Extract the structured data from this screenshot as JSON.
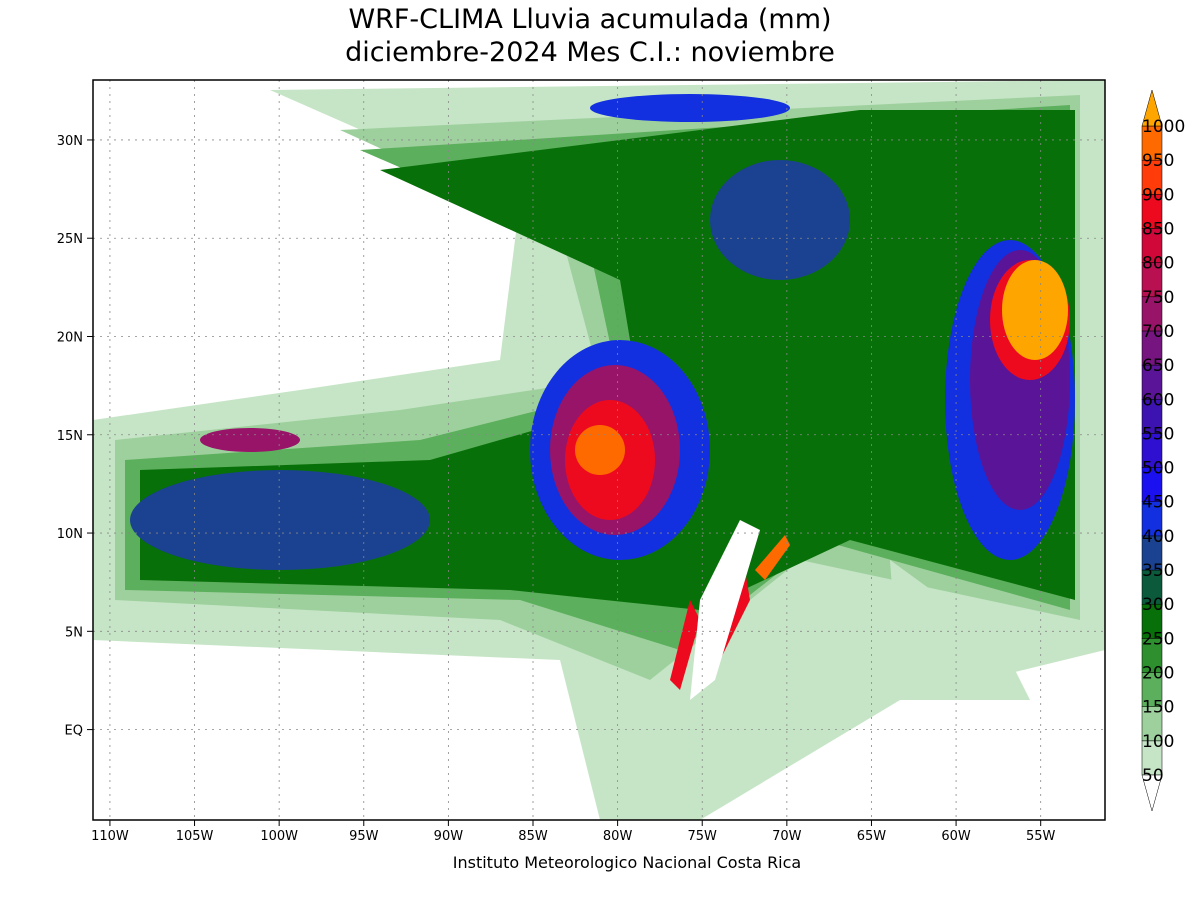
{
  "map": {
    "title": [
      "WRF-CLIMA Lluvia acumulada (mm)",
      "diciembre-2024 Mes C.I.: noviembre"
    ],
    "footer": "Instituto Meteorologico Nacional Costa Rica",
    "lonlim": [
      -111,
      -51.2
    ],
    "latlim": [
      -4.6,
      33.05
    ],
    "lon_ticks": [
      {
        "value": -110,
        "label": "110W"
      },
      {
        "value": -105,
        "label": "105W"
      },
      {
        "value": -100,
        "label": "100W"
      },
      {
        "value": -95,
        "label": "95W"
      },
      {
        "value": -90,
        "label": "90W"
      },
      {
        "value": -85,
        "label": "85W"
      },
      {
        "value": -80,
        "label": "80W"
      },
      {
        "value": -75,
        "label": "75W"
      },
      {
        "value": -70,
        "label": "70W"
      },
      {
        "value": -65,
        "label": "65W"
      },
      {
        "value": -60,
        "label": "60W"
      },
      {
        "value": -55,
        "label": "55W"
      }
    ],
    "lat_ticks": [
      {
        "value": 30,
        "label": "30N"
      },
      {
        "value": 25,
        "label": "25N"
      },
      {
        "value": 20,
        "label": "20N"
      },
      {
        "value": 15,
        "label": "15N"
      },
      {
        "value": 10,
        "label": "10N"
      },
      {
        "value": 5,
        "label": "5N"
      },
      {
        "value": 0,
        "label": "EQ"
      }
    ],
    "grid": true,
    "colorbar": {
      "levels": [
        50,
        100,
        150,
        200,
        250,
        300,
        350,
        400,
        450,
        500,
        550,
        600,
        650,
        700,
        750,
        800,
        850,
        900,
        950,
        1000
      ],
      "colors": [
        "#c6e5c6",
        "#9ed09e",
        "#5caf5c",
        "#2e8f2e",
        "#087008",
        "#0b5a3c",
        "#1a4290",
        "#1230e0",
        "#1a10f0",
        "#3010d0",
        "#3c12b0",
        "#5a1498",
        "#761480",
        "#981468",
        "#b81050",
        "#d0083a",
        "#ee0a1e",
        "#ff3c0a",
        "#ff6a00"
      ],
      "under_color": "#ffffff",
      "over_color": "#ffa500"
    }
  }
}
